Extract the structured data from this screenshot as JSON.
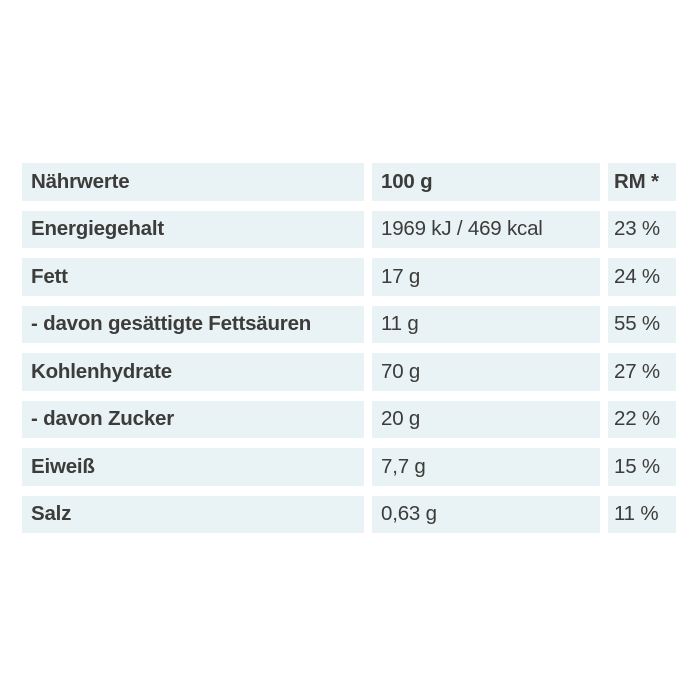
{
  "table": {
    "title_column_header": "Nährwerte",
    "amount_column_header": "100 g",
    "rm_column_header": "RM *",
    "rows": [
      {
        "label": "Energiegehalt",
        "amount": "1969 kJ / 469 kcal",
        "rm": "23 %"
      },
      {
        "label": "Fett",
        "amount": "17 g",
        "rm": "24 %"
      },
      {
        "label": "- davon gesättigte Fettsäuren",
        "amount": "11 g",
        "rm": "55 %"
      },
      {
        "label": "Kohlenhydrate",
        "amount": "70 g",
        "rm": "27 %"
      },
      {
        "label": "- davon Zucker",
        "amount": "20 g",
        "rm": "22 %"
      },
      {
        "label": "Eiweiß",
        "amount": "7,7 g",
        "rm": "15 %"
      },
      {
        "label": "Salz",
        "amount": "0,63 g",
        "rm": "11 %"
      }
    ],
    "colors": {
      "cell_background": "#e9f2f4",
      "text": "#3c3c3b",
      "page_background": "#ffffff"
    }
  }
}
